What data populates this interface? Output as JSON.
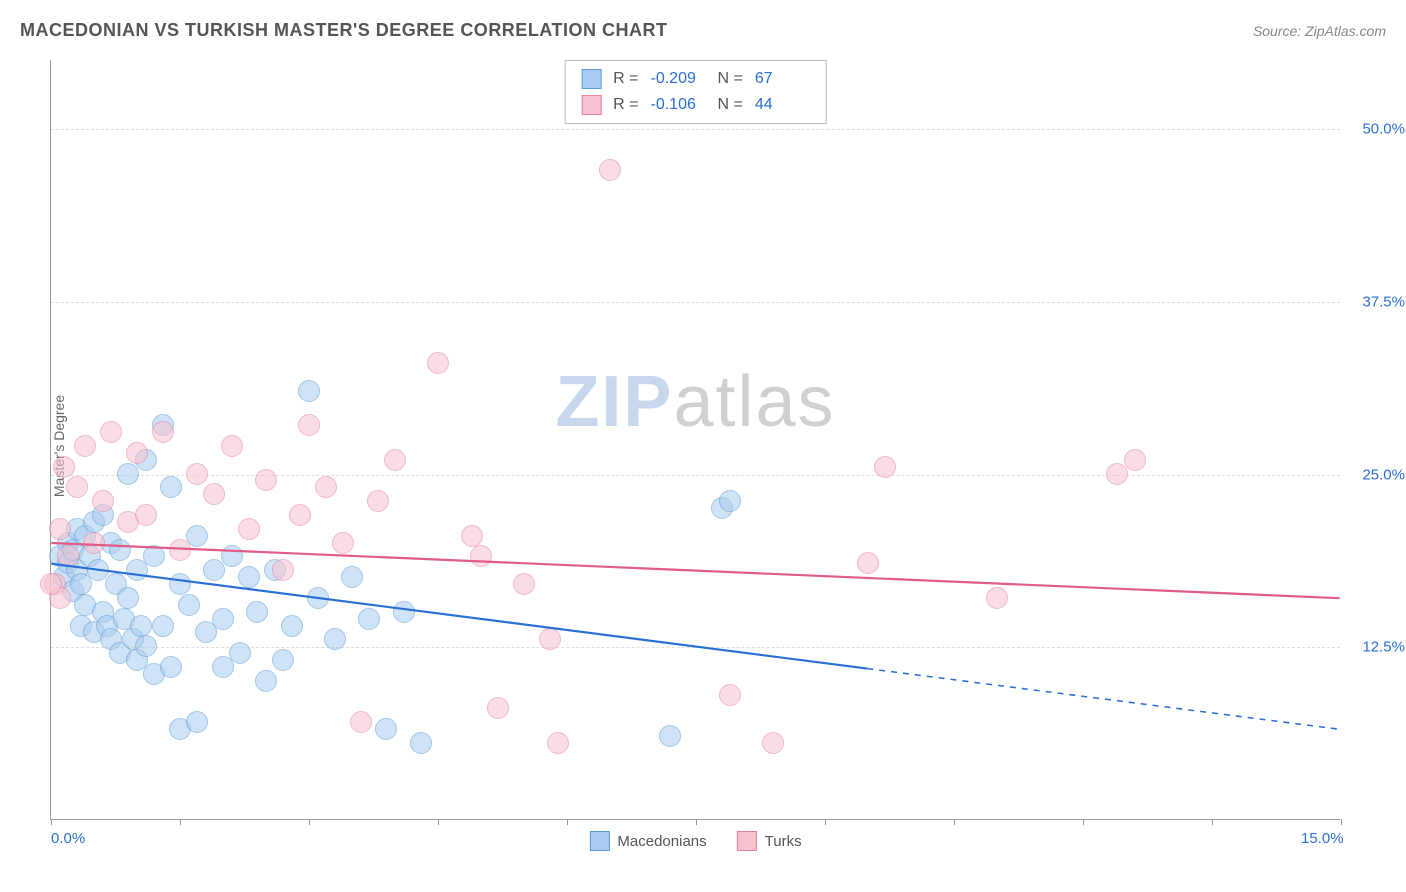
{
  "header": {
    "title": "MACEDONIAN VS TURKISH MASTER'S DEGREE CORRELATION CHART",
    "source": "Source: ZipAtlas.com"
  },
  "watermark": {
    "zip": "ZIP",
    "atlas": "atlas"
  },
  "chart": {
    "type": "scatter",
    "ylabel": "Master's Degree",
    "xlim": [
      0,
      15
    ],
    "ylim": [
      0,
      55
    ],
    "xticks": [
      0,
      1.5,
      3,
      4.5,
      6,
      7.5,
      9,
      10.5,
      12,
      13.5,
      15
    ],
    "xtick_labels": {
      "0": "0.0%",
      "15": "15.0%"
    },
    "yticks": [
      12.5,
      25.0,
      37.5,
      50.0
    ],
    "ytick_format": "%",
    "grid_color": "#e0e0e0",
    "background_color": "#ffffff",
    "series": [
      {
        "name": "Macedonians",
        "fill": "#a9cdf0",
        "stroke": "#5b9bd5",
        "fill_opacity": 0.55,
        "marker_radius": 11,
        "stats": {
          "R_label": "R =",
          "R": "-0.209",
          "N_label": "N =",
          "N": "67"
        },
        "trend": {
          "y_at_x0": 18.5,
          "y_at_xmax": 6.5,
          "solid_until_x": 9.5,
          "color": "#2a6fd6",
          "width": 2.2
        },
        "points": [
          [
            0.1,
            19
          ],
          [
            0.15,
            17.5
          ],
          [
            0.2,
            18.5
          ],
          [
            0.2,
            20
          ],
          [
            0.25,
            19.5
          ],
          [
            0.25,
            16.5
          ],
          [
            0.3,
            21
          ],
          [
            0.3,
            18
          ],
          [
            0.35,
            14
          ],
          [
            0.35,
            17
          ],
          [
            0.4,
            20.5
          ],
          [
            0.4,
            15.5
          ],
          [
            0.45,
            19
          ],
          [
            0.5,
            21.5
          ],
          [
            0.5,
            13.5
          ],
          [
            0.55,
            18
          ],
          [
            0.6,
            22
          ],
          [
            0.6,
            15
          ],
          [
            0.65,
            14
          ],
          [
            0.7,
            20
          ],
          [
            0.7,
            13
          ],
          [
            0.75,
            17
          ],
          [
            0.8,
            19.5
          ],
          [
            0.8,
            12
          ],
          [
            0.85,
            14.5
          ],
          [
            0.9,
            25
          ],
          [
            0.9,
            16
          ],
          [
            0.95,
            13
          ],
          [
            1.0,
            18
          ],
          [
            1.0,
            11.5
          ],
          [
            1.05,
            14
          ],
          [
            1.1,
            26
          ],
          [
            1.1,
            12.5
          ],
          [
            1.2,
            19
          ],
          [
            1.2,
            10.5
          ],
          [
            1.3,
            28.5
          ],
          [
            1.3,
            14
          ],
          [
            1.4,
            24
          ],
          [
            1.4,
            11
          ],
          [
            1.5,
            17
          ],
          [
            1.5,
            6.5
          ],
          [
            1.6,
            15.5
          ],
          [
            1.7,
            20.5
          ],
          [
            1.7,
            7
          ],
          [
            1.8,
            13.5
          ],
          [
            1.9,
            18
          ],
          [
            2.0,
            14.5
          ],
          [
            2.0,
            11
          ],
          [
            2.1,
            19
          ],
          [
            2.2,
            12
          ],
          [
            2.3,
            17.5
          ],
          [
            2.4,
            15
          ],
          [
            2.5,
            10
          ],
          [
            2.6,
            18
          ],
          [
            2.7,
            11.5
          ],
          [
            2.8,
            14
          ],
          [
            3.0,
            31
          ],
          [
            3.1,
            16
          ],
          [
            3.3,
            13
          ],
          [
            3.5,
            17.5
          ],
          [
            3.7,
            14.5
          ],
          [
            3.9,
            6.5
          ],
          [
            4.1,
            15
          ],
          [
            4.3,
            5.5
          ],
          [
            7.2,
            6
          ],
          [
            7.8,
            22.5
          ],
          [
            7.9,
            23
          ]
        ]
      },
      {
        "name": "Turks",
        "fill": "#f6c2ce",
        "stroke": "#e87ea0",
        "fill_opacity": 0.55,
        "marker_radius": 11,
        "stats": {
          "R_label": "R =",
          "R": "-0.106",
          "N_label": "N =",
          "N": "44"
        },
        "trend": {
          "y_at_x0": 20.0,
          "y_at_xmax": 16.0,
          "solid_until_x": 15,
          "color": "#e15b88",
          "width": 2.2
        },
        "points": [
          [
            0.05,
            17
          ],
          [
            0.1,
            21
          ],
          [
            0.1,
            16
          ],
          [
            0.15,
            25.5
          ],
          [
            0.2,
            19
          ],
          [
            0.3,
            24
          ],
          [
            0.4,
            27
          ],
          [
            0.5,
            20
          ],
          [
            0.6,
            23
          ],
          [
            0.7,
            28
          ],
          [
            0.9,
            21.5
          ],
          [
            1.0,
            26.5
          ],
          [
            1.1,
            22
          ],
          [
            1.3,
            28
          ],
          [
            1.5,
            19.5
          ],
          [
            1.7,
            25
          ],
          [
            1.9,
            23.5
          ],
          [
            2.1,
            27
          ],
          [
            2.3,
            21
          ],
          [
            2.5,
            24.5
          ],
          [
            2.7,
            18
          ],
          [
            2.9,
            22
          ],
          [
            3.0,
            28.5
          ],
          [
            3.2,
            24
          ],
          [
            3.4,
            20
          ],
          [
            3.6,
            7
          ],
          [
            3.8,
            23
          ],
          [
            4.0,
            26
          ],
          [
            4.5,
            33
          ],
          [
            4.9,
            20.5
          ],
          [
            5.0,
            19
          ],
          [
            5.2,
            8
          ],
          [
            5.5,
            17
          ],
          [
            5.8,
            13
          ],
          [
            5.9,
            5.5
          ],
          [
            6.5,
            47
          ],
          [
            7.9,
            9
          ],
          [
            8.4,
            5.5
          ],
          [
            9.5,
            18.5
          ],
          [
            9.7,
            25.5
          ],
          [
            11.0,
            16
          ],
          [
            12.4,
            25
          ],
          [
            12.6,
            26
          ],
          [
            0.0,
            17
          ]
        ]
      }
    ]
  },
  "bottom_legend": {
    "items": [
      {
        "label": "Macedonians",
        "fill": "#a9cdf0",
        "stroke": "#5b9bd5"
      },
      {
        "label": "Turks",
        "fill": "#f6c2ce",
        "stroke": "#e87ea0"
      }
    ]
  }
}
